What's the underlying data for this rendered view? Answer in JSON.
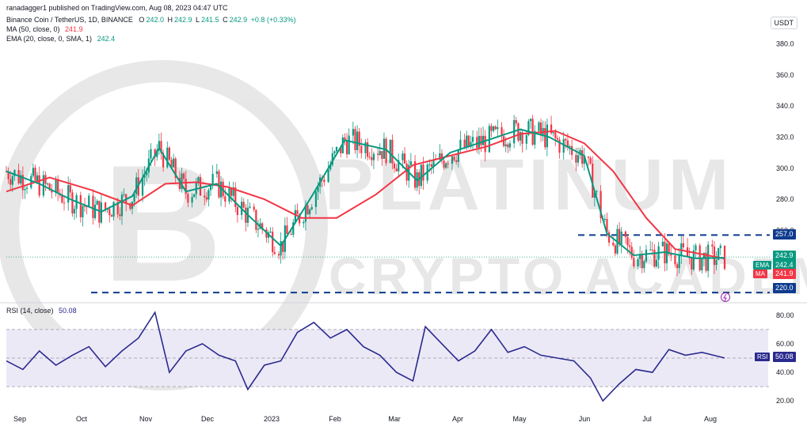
{
  "header": {
    "published_by": "ranadagger1 published on TradingView.com, Aug 08, 2023 04:47 UTC"
  },
  "symbol": {
    "title": "Binance Coin / TetherUS, 1D, BINANCE",
    "open_label": "O",
    "open": "242.0",
    "high_label": "H",
    "high": "242.9",
    "low_label": "L",
    "low": "241.5",
    "close_label": "C",
    "close": "242.9",
    "change": "+0.8 (+0.33%)"
  },
  "indicators": {
    "ma_label": "MA (50, close, 0)",
    "ma_value": "241.9",
    "ema_label": "EMA (20, close, 0, SMA, 1)",
    "ema_value": "242.4",
    "rsi_label": "RSI (14, close)",
    "rsi_value": "50.08"
  },
  "currency_button": "USDT",
  "price_tags": {
    "current": "242.9",
    "ema_name": "EMA",
    "ema": "242.4",
    "ma_name": "MA",
    "ma": "241.9",
    "rsi_name": "RSI",
    "rsi": "50.08"
  },
  "watermark": {
    "line1": "PLATINUM",
    "line2": "CRYPTO ACADEMY",
    "logo": "B"
  },
  "colors": {
    "up": "#089981",
    "down": "#f23645",
    "ema": "#089981",
    "ma": "#f23645",
    "rsi": "#2a2a8e",
    "level": "#0d3b8e",
    "rsi_band": "#ece9f7"
  },
  "chart_data": [
    {
      "type": "candlestick",
      "title": "Binance Coin / TetherUS, 1D, BINANCE",
      "y_axis": {
        "ticks": [
          "380.0",
          "360.0",
          "340.0",
          "320.0",
          "300.0",
          "280.0",
          "260.0"
        ],
        "range": [
          215,
          398
        ]
      },
      "x_axis": {
        "ticks": [
          "Sep",
          "Oct",
          "Nov",
          "Dec",
          "2023",
          "Feb",
          "Mar",
          "Apr",
          "May",
          "Jun",
          "Jul",
          "Aug"
        ]
      },
      "horizontal_levels": [
        {
          "label": "257.0",
          "value": 257.0
        },
        {
          "label": "220.0",
          "value": 220.0
        }
      ],
      "series": [
        {
          "name": "MA (50, close, 0)",
          "color": "#f23645",
          "x": [
            "2022-08-25",
            "2022-09-15",
            "2022-10-05",
            "2022-10-25",
            "2022-11-10",
            "2022-11-25",
            "2022-12-10",
            "2022-12-28",
            "2023-01-15",
            "2023-02-01",
            "2023-02-20",
            "2023-03-10",
            "2023-03-28",
            "2023-04-15",
            "2023-05-01",
            "2023-05-18",
            "2023-06-01",
            "2023-06-15",
            "2023-07-01",
            "2023-07-15",
            "2023-08-08"
          ],
          "values": [
            285,
            294,
            286,
            276,
            290,
            291,
            288,
            280,
            268,
            268,
            283,
            302,
            308,
            314,
            322,
            324,
            316,
            298,
            268,
            248,
            241.9
          ]
        },
        {
          "name": "EMA (20, close, 0, SMA, 1)",
          "color": "#089981",
          "x": [
            "2022-08-25",
            "2022-09-10",
            "2022-09-25",
            "2022-10-10",
            "2022-10-25",
            "2022-11-07",
            "2022-11-20",
            "2022-12-05",
            "2022-12-20",
            "2023-01-05",
            "2023-01-20",
            "2023-02-05",
            "2023-02-25",
            "2023-03-12",
            "2023-03-28",
            "2023-04-15",
            "2023-05-01",
            "2023-05-15",
            "2023-06-01",
            "2023-06-12",
            "2023-06-25",
            "2023-07-10",
            "2023-07-25",
            "2023-08-08"
          ],
          "values": [
            298,
            290,
            280,
            272,
            282,
            313,
            285,
            290,
            270,
            250,
            282,
            318,
            312,
            292,
            310,
            318,
            325,
            320,
            308,
            258,
            244,
            246,
            242,
            242.4
          ]
        }
      ]
    },
    {
      "type": "line",
      "title": "RSI (14, close)",
      "y_axis": {
        "ticks": [
          "80.00",
          "60.00",
          "40.00",
          "20.00"
        ],
        "range": [
          14,
          86
        ]
      },
      "bands": {
        "upper": 70,
        "middle": 50,
        "lower": 30
      },
      "series": [
        {
          "name": "RSI (14, close)",
          "color": "#2a2a8e",
          "x": [
            "2022-08-25",
            "2022-09-02",
            "2022-09-10",
            "2022-09-18",
            "2022-09-26",
            "2022-10-04",
            "2022-10-12",
            "2022-10-20",
            "2022-10-28",
            "2022-11-05",
            "2022-11-12",
            "2022-11-20",
            "2022-11-28",
            "2022-12-06",
            "2022-12-14",
            "2022-12-20",
            "2022-12-28",
            "2023-01-05",
            "2023-01-13",
            "2023-01-21",
            "2023-01-29",
            "2023-02-06",
            "2023-02-14",
            "2023-02-22",
            "2023-03-02",
            "2023-03-10",
            "2023-03-16",
            "2023-03-24",
            "2023-04-01",
            "2023-04-09",
            "2023-04-17",
            "2023-04-25",
            "2023-05-03",
            "2023-05-11",
            "2023-05-19",
            "2023-05-27",
            "2023-06-04",
            "2023-06-10",
            "2023-06-18",
            "2023-06-26",
            "2023-07-04",
            "2023-07-12",
            "2023-07-20",
            "2023-07-28",
            "2023-08-08"
          ],
          "values": [
            48,
            42,
            55,
            45,
            52,
            58,
            44,
            55,
            64,
            82,
            40,
            55,
            60,
            52,
            48,
            28,
            45,
            48,
            68,
            75,
            64,
            70,
            58,
            52,
            40,
            34,
            72,
            60,
            48,
            55,
            70,
            54,
            58,
            52,
            50,
            48,
            36,
            20,
            32,
            42,
            40,
            56,
            52,
            54,
            50.08
          ]
        }
      ]
    }
  ]
}
